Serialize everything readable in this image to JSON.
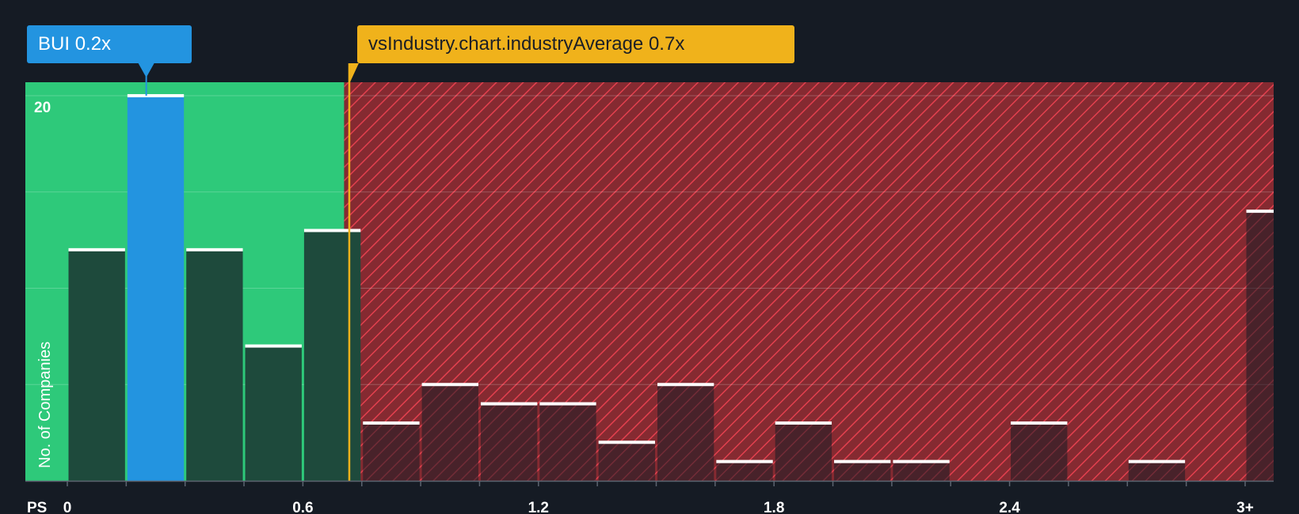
{
  "company_callout": {
    "ticker": "BUI",
    "value_label": "0.2x"
  },
  "industry_callout": {
    "label": "vsIndustry.chart.industryAverage",
    "value_label": "0.7x"
  },
  "colors": {
    "background": "#151b24",
    "fair_zone": "#2ec97a",
    "company_bar": "#2394e0",
    "peer_bar": "#1e4a3c",
    "overvalued_zone": "#852a31",
    "hatch": "#e3404e",
    "industry_line": "#f0b21b",
    "bar_cap": "#ffffff"
  },
  "chart_data": {
    "type": "bar",
    "title": "",
    "xlabel": "PS",
    "ylabel": "No. of Companies",
    "x_ticks": [
      {
        "value": 0,
        "label": "0"
      },
      {
        "value": 0.6,
        "label": "0.6"
      },
      {
        "value": 1.2,
        "label": "1.2"
      },
      {
        "value": 1.8,
        "label": "1.8"
      },
      {
        "value": 2.4,
        "label": "2.4"
      },
      {
        "value": 3.0,
        "label": "3+"
      }
    ],
    "xlim": [
      0,
      3.075
    ],
    "ylim": [
      0,
      20.7
    ],
    "y_ticks": [
      {
        "value": 20,
        "label": "20"
      }
    ],
    "gridlines": [
      5,
      10,
      15,
      20
    ],
    "bin_width": 0.15,
    "bins": [
      {
        "start": 0.0,
        "count": 12
      },
      {
        "start": 0.15,
        "count": 20,
        "highlight": true
      },
      {
        "start": 0.3,
        "count": 12
      },
      {
        "start": 0.45,
        "count": 7
      },
      {
        "start": 0.6,
        "count": 13
      },
      {
        "start": 0.75,
        "count": 3
      },
      {
        "start": 0.9,
        "count": 5
      },
      {
        "start": 1.05,
        "count": 4
      },
      {
        "start": 1.2,
        "count": 4
      },
      {
        "start": 1.35,
        "count": 2
      },
      {
        "start": 1.5,
        "count": 5
      },
      {
        "start": 1.65,
        "count": 1
      },
      {
        "start": 1.8,
        "count": 3
      },
      {
        "start": 1.95,
        "count": 1
      },
      {
        "start": 2.1,
        "count": 1
      },
      {
        "start": 2.25,
        "count": 0
      },
      {
        "start": 2.4,
        "count": 3
      },
      {
        "start": 2.55,
        "count": 0
      },
      {
        "start": 2.7,
        "count": 1
      },
      {
        "start": 2.85,
        "count": 0
      },
      {
        "start": 3.0,
        "count": 14
      }
    ],
    "company_value": 0.2,
    "industry_average": 0.7,
    "fair_zone_end": 0.705
  }
}
